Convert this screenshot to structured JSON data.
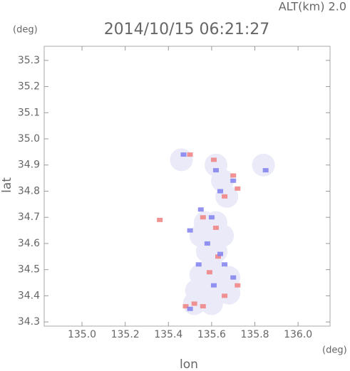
{
  "chart_data": {
    "type": "scatter",
    "title": "2014/10/15 06:21:27",
    "annotation": "ALT(km) 2.0",
    "y_unit": "(deg)",
    "x_unit": "(deg)",
    "xlabel": "lon",
    "ylabel": "lat",
    "xlim": [
      134.825,
      136.148
    ],
    "ylim": [
      34.284,
      35.354
    ],
    "xticks": [
      {
        "value": 135.0,
        "label": "135.0"
      },
      135.2,
      135.4,
      135.6,
      135.8,
      {
        "value": 136.0,
        "label": "136.0"
      }
    ],
    "yticks": [
      35.3,
      35.2,
      35.1,
      {
        "value": 35.0,
        "label": "35.0"
      },
      34.9,
      34.8,
      34.7,
      34.6,
      34.5,
      34.4,
      34.3
    ],
    "series": [
      {
        "color": "#eaeaf8",
        "x": [
          135.46,
          135.62,
          135.65,
          135.67,
          135.57,
          135.62,
          135.55,
          135.6,
          135.65,
          135.58,
          135.62,
          135.6,
          135.55,
          135.62,
          135.68,
          135.53,
          135.6,
          135.68,
          135.52,
          135.6,
          135.84
        ],
        "values": [
          34.92,
          34.9,
          34.84,
          34.78,
          34.68,
          34.68,
          34.63,
          34.62,
          34.63,
          34.57,
          34.57,
          34.51,
          34.48,
          34.47,
          34.47,
          34.42,
          34.41,
          34.41,
          34.37,
          34.37,
          34.9
        ]
      },
      {
        "color": "#f08080",
        "x": [
          135.48,
          135.52,
          135.56,
          135.72,
          135.66,
          135.59,
          135.63,
          135.56,
          135.36,
          135.62,
          135.7,
          135.66,
          135.61,
          135.5,
          135.72
        ],
        "values": [
          34.36,
          34.37,
          34.36,
          34.44,
          34.4,
          34.49,
          34.55,
          34.7,
          34.69,
          34.66,
          34.86,
          34.78,
          34.92,
          34.94,
          34.81
        ]
      },
      {
        "color": "#8080f0",
        "x": [
          135.55,
          135.6,
          135.5,
          135.58,
          135.64,
          135.54,
          135.66,
          135.7,
          135.61,
          135.5,
          135.7,
          135.62,
          135.47,
          135.85,
          135.64
        ],
        "values": [
          34.73,
          34.7,
          34.65,
          34.6,
          34.56,
          34.52,
          34.52,
          34.47,
          34.44,
          34.35,
          34.84,
          34.88,
          34.94,
          34.88,
          34.8
        ]
      }
    ]
  }
}
